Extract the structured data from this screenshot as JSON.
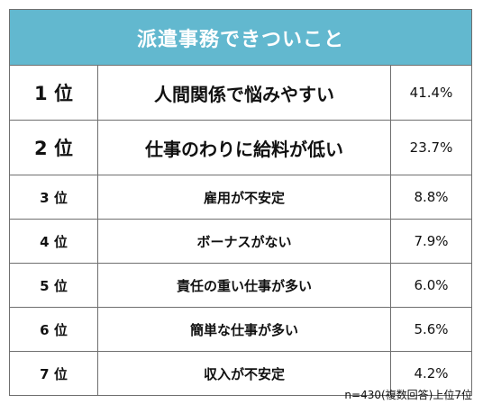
{
  "chart_data": {
    "type": "table",
    "title": "派遣事務できついこと",
    "rows": [
      {
        "rank": "1 位",
        "reason": "人間関係で悩みやすい",
        "percent": "41.4%",
        "value": 41.4
      },
      {
        "rank": "2 位",
        "reason": "仕事のわりに給料が低い",
        "percent": "23.7%",
        "value": 23.7
      },
      {
        "rank": "3 位",
        "reason": "雇用が不安定",
        "percent": "8.8%",
        "value": 8.8
      },
      {
        "rank": "4 位",
        "reason": "ボーナスがない",
        "percent": "7.9%",
        "value": 7.9
      },
      {
        "rank": "5 位",
        "reason": "責任の重い仕事が多い",
        "percent": "6.0%",
        "value": 6.0
      },
      {
        "rank": "6 位",
        "reason": "簡単な仕事が多い",
        "percent": "5.6%",
        "value": 5.6
      },
      {
        "rank": "7 位",
        "reason": "収入が不安定",
        "percent": "4.2%",
        "value": 4.2
      }
    ],
    "footnote": "n=430(複数回答)上位7位",
    "colors": {
      "header_bg": "#62b8cf",
      "header_text": "#ffffff",
      "border": "#6f6f6f"
    }
  }
}
